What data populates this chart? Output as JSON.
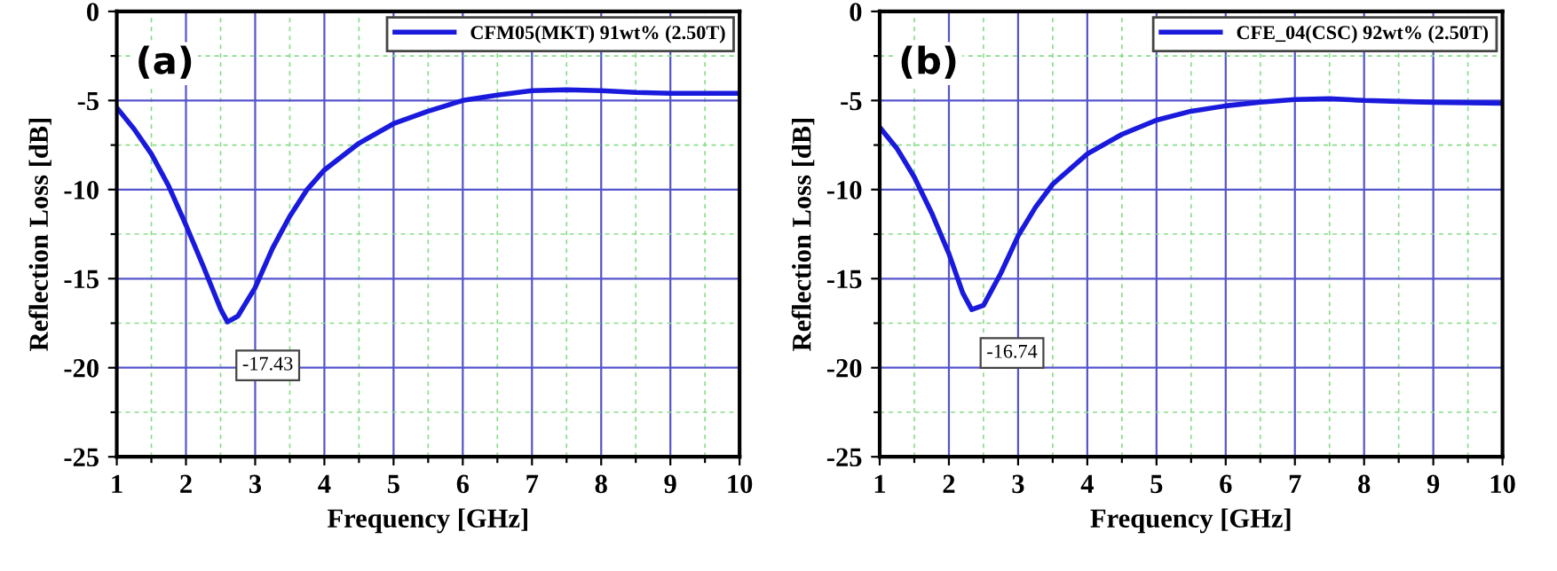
{
  "chart_data": [
    {
      "type": "line",
      "xlabel": "Frequency [GHz]",
      "ylabel": "Reflection Loss [dB]",
      "xlim": [
        1,
        10
      ],
      "ylim": [
        -25,
        0
      ],
      "xticks": [
        1,
        {
          "value": 1.5,
          "label": null
        },
        2,
        {
          "value": 2.5,
          "label": null
        },
        3,
        {
          "value": 3.5,
          "label": null
        },
        4,
        {
          "value": 4.5,
          "label": null
        },
        5,
        {
          "value": 5.5,
          "label": null
        },
        6,
        {
          "value": 6.5,
          "label": null
        },
        7,
        {
          "value": 7.5,
          "label": null
        },
        8,
        {
          "value": 8.5,
          "label": null
        },
        9,
        {
          "value": 9.5,
          "label": null
        },
        10
      ],
      "yticks": [
        -25,
        {
          "value": -22.5,
          "label": null
        },
        -20,
        {
          "value": -17.5,
          "label": null
        },
        -15,
        {
          "value": -12.5,
          "label": null
        },
        -10,
        {
          "value": -7.5,
          "label": null
        },
        -5,
        {
          "value": -2.5,
          "label": null
        },
        0
      ],
      "grid": true,
      "legend": "top right",
      "annotations": [
        "(a)",
        {
          "text": "-17.43",
          "x": 2.6,
          "y": -17.43
        }
      ],
      "series": [
        {
          "name": "CFM05(MKT) 91wt% (2.50T)",
          "color": "#1a1adc",
          "x": [
            1,
            1.25,
            1.5,
            1.75,
            2,
            2.25,
            2.5,
            2.6,
            2.75,
            3,
            3.25,
            3.5,
            3.75,
            4,
            4.5,
            5,
            5.5,
            6,
            6.5,
            7,
            7.5,
            8,
            8.5,
            9,
            10
          ],
          "values": [
            -5.4,
            -6.6,
            -8.0,
            -9.8,
            -12.0,
            -14.3,
            -16.7,
            -17.43,
            -17.1,
            -15.5,
            -13.3,
            -11.5,
            -10.0,
            -8.9,
            -7.4,
            -6.3,
            -5.6,
            -5.0,
            -4.7,
            -4.45,
            -4.4,
            -4.45,
            -4.55,
            -4.6,
            -4.6
          ]
        }
      ]
    },
    {
      "type": "line",
      "xlabel": "Frequency [GHz]",
      "ylabel": "Reflection Loss [dB]",
      "xlim": [
        1,
        10
      ],
      "ylim": [
        -25,
        0
      ],
      "xticks": [
        1,
        {
          "value": 1.5,
          "label": null
        },
        2,
        {
          "value": 2.5,
          "label": null
        },
        3,
        {
          "value": 3.5,
          "label": null
        },
        4,
        {
          "value": 4.5,
          "label": null
        },
        5,
        {
          "value": 5.5,
          "label": null
        },
        6,
        {
          "value": 6.5,
          "label": null
        },
        7,
        {
          "value": 7.5,
          "label": null
        },
        8,
        {
          "value": 8.5,
          "label": null
        },
        9,
        {
          "value": 9.5,
          "label": null
        },
        10
      ],
      "yticks": [
        -25,
        {
          "value": -22.5,
          "label": null
        },
        -20,
        {
          "value": -17.5,
          "label": null
        },
        -15,
        {
          "value": -12.5,
          "label": null
        },
        -10,
        {
          "value": -7.5,
          "label": null
        },
        -5,
        {
          "value": -2.5,
          "label": null
        },
        0
      ],
      "grid": true,
      "legend": "top right",
      "annotations": [
        "(b)",
        {
          "text": "-16.74",
          "x": 2.33,
          "y": -16.74
        }
      ],
      "series": [
        {
          "name": "CFE_04(CSC) 92wt% (2.50T)",
          "color": "#1a1adc",
          "x": [
            1,
            1.25,
            1.5,
            1.75,
            2,
            2.2,
            2.33,
            2.5,
            2.75,
            3,
            3.25,
            3.5,
            4,
            4.5,
            5,
            5.5,
            6,
            6.5,
            7,
            7.5,
            8,
            8.5,
            9,
            10
          ],
          "values": [
            -6.5,
            -7.7,
            -9.3,
            -11.3,
            -13.6,
            -15.8,
            -16.74,
            -16.5,
            -14.7,
            -12.6,
            -11.0,
            -9.7,
            -8.0,
            -6.9,
            -6.1,
            -5.6,
            -5.3,
            -5.1,
            -4.95,
            -4.9,
            -5.0,
            -5.05,
            -5.1,
            -5.15
          ]
        }
      ]
    }
  ]
}
